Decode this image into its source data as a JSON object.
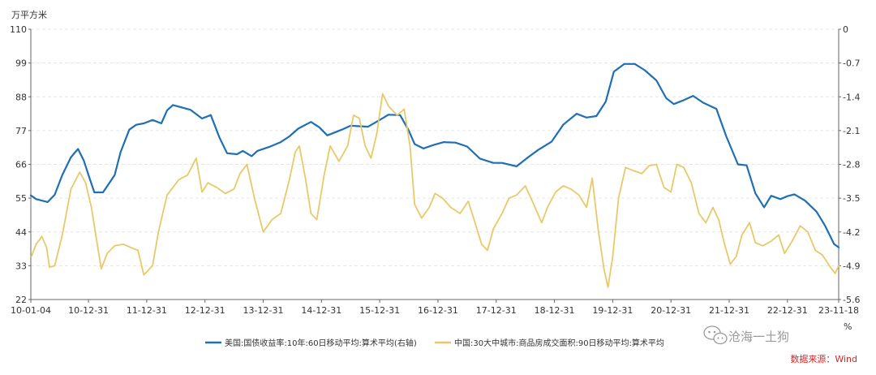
{
  "chart_data": {
    "type": "line",
    "left_unit": "万平方米",
    "right_unit": "%",
    "left_ylim": [
      22,
      110
    ],
    "left_ticks": [
      "110",
      "99",
      "88",
      "77",
      "66",
      "55",
      "44",
      "33",
      "22"
    ],
    "right_ylim": [
      -5.6,
      0
    ],
    "right_ticks": [
      "0",
      "-0.7",
      "-1.4",
      "-2.1",
      "-2.8",
      "-3.5",
      "-4.2",
      "-4.9",
      "-5.6"
    ],
    "x_ticks": [
      "10-01-04",
      "10-12-31",
      "11-12-31",
      "12-12-31",
      "13-12-31",
      "14-12-31",
      "15-12-31",
      "16-12-31",
      "17-12-31",
      "18-12-31",
      "19-12-31",
      "20-12-31",
      "21-12-31",
      "22-12-31",
      "23-11-18"
    ],
    "x_tick_dates": [
      2010.01,
      2011.0,
      2012.0,
      2013.0,
      2014.0,
      2015.0,
      2016.0,
      2017.0,
      2018.0,
      2019.0,
      2020.0,
      2021.0,
      2022.0,
      2023.0,
      2023.88
    ],
    "series": [
      {
        "name": "美国:国债收益率:10年:60日移动平均:算术平均(右轴)",
        "axis": "right",
        "color": "#1f6fb4",
        "points": [
          [
            2010.01,
            -3.44
          ],
          [
            2010.1,
            -3.52
          ],
          [
            2010.3,
            -3.58
          ],
          [
            2010.42,
            -3.43
          ],
          [
            2010.55,
            -3.02
          ],
          [
            2010.7,
            -2.65
          ],
          [
            2010.82,
            -2.48
          ],
          [
            2010.92,
            -2.72
          ],
          [
            2011.0,
            -3.02
          ],
          [
            2011.1,
            -3.38
          ],
          [
            2011.25,
            -3.38
          ],
          [
            2011.45,
            -3.02
          ],
          [
            2011.55,
            -2.55
          ],
          [
            2011.7,
            -2.08
          ],
          [
            2011.82,
            -1.98
          ],
          [
            2011.95,
            -1.95
          ],
          [
            2012.1,
            -1.88
          ],
          [
            2012.25,
            -1.95
          ],
          [
            2012.35,
            -1.68
          ],
          [
            2012.45,
            -1.57
          ],
          [
            2012.6,
            -1.62
          ],
          [
            2012.75,
            -1.67
          ],
          [
            2012.95,
            -1.85
          ],
          [
            2013.1,
            -1.78
          ],
          [
            2013.25,
            -2.25
          ],
          [
            2013.38,
            -2.57
          ],
          [
            2013.55,
            -2.59
          ],
          [
            2013.65,
            -2.52
          ],
          [
            2013.8,
            -2.63
          ],
          [
            2013.9,
            -2.52
          ],
          [
            2014.1,
            -2.44
          ],
          [
            2014.3,
            -2.34
          ],
          [
            2014.45,
            -2.22
          ],
          [
            2014.6,
            -2.06
          ],
          [
            2014.82,
            -1.92
          ],
          [
            2014.96,
            -2.03
          ],
          [
            2015.1,
            -2.2
          ],
          [
            2015.35,
            -2.08
          ],
          [
            2015.5,
            -2.0
          ],
          [
            2015.8,
            -2.02
          ],
          [
            2016.0,
            -1.88
          ],
          [
            2016.15,
            -1.77
          ],
          [
            2016.35,
            -1.78
          ],
          [
            2016.5,
            -2.1
          ],
          [
            2016.6,
            -2.38
          ],
          [
            2016.75,
            -2.47
          ],
          [
            2016.92,
            -2.4
          ],
          [
            2017.1,
            -2.34
          ],
          [
            2017.3,
            -2.35
          ],
          [
            2017.5,
            -2.43
          ],
          [
            2017.72,
            -2.68
          ],
          [
            2017.95,
            -2.77
          ],
          [
            2018.1,
            -2.77
          ],
          [
            2018.35,
            -2.84
          ],
          [
            2018.55,
            -2.65
          ],
          [
            2018.72,
            -2.5
          ],
          [
            2018.95,
            -2.33
          ],
          [
            2019.15,
            -1.98
          ],
          [
            2019.38,
            -1.75
          ],
          [
            2019.55,
            -1.83
          ],
          [
            2019.72,
            -1.8
          ],
          [
            2019.88,
            -1.5
          ],
          [
            2020.02,
            -0.88
          ],
          [
            2020.2,
            -0.72
          ],
          [
            2020.38,
            -0.72
          ],
          [
            2020.55,
            -0.85
          ],
          [
            2020.75,
            -1.06
          ],
          [
            2020.92,
            -1.43
          ],
          [
            2021.05,
            -1.55
          ],
          [
            2021.22,
            -1.47
          ],
          [
            2021.38,
            -1.38
          ],
          [
            2021.55,
            -1.52
          ],
          [
            2021.78,
            -1.65
          ],
          [
            2021.95,
            -2.22
          ],
          [
            2022.15,
            -2.8
          ],
          [
            2022.3,
            -2.82
          ],
          [
            2022.45,
            -3.4
          ],
          [
            2022.6,
            -3.69
          ],
          [
            2022.72,
            -3.45
          ],
          [
            2022.88,
            -3.52
          ],
          [
            2023.0,
            -3.46
          ],
          [
            2023.12,
            -3.42
          ],
          [
            2023.3,
            -3.55
          ],
          [
            2023.5,
            -3.78
          ],
          [
            2023.65,
            -4.08
          ],
          [
            2023.8,
            -4.45
          ],
          [
            2023.88,
            -4.52
          ]
        ]
      },
      {
        "name": "中国:30大中城市:商品房成交面积:90日移动平均:算术平均",
        "axis": "left",
        "color": "#e8c96a",
        "points": [
          [
            2010.02,
            36.0
          ],
          [
            2010.1,
            40.0
          ],
          [
            2010.2,
            42.5
          ],
          [
            2010.28,
            39.0
          ],
          [
            2010.33,
            32.5
          ],
          [
            2010.42,
            33.0
          ],
          [
            2010.55,
            43.0
          ],
          [
            2010.7,
            58.0
          ],
          [
            2010.85,
            63.5
          ],
          [
            2010.95,
            60.0
          ],
          [
            2011.05,
            52.0
          ],
          [
            2011.15,
            40.0
          ],
          [
            2011.22,
            32.0
          ],
          [
            2011.32,
            37.0
          ],
          [
            2011.45,
            39.5
          ],
          [
            2011.6,
            40.0
          ],
          [
            2011.72,
            39.0
          ],
          [
            2011.85,
            38.0
          ],
          [
            2011.95,
            30.0
          ],
          [
            2012.1,
            33.0
          ],
          [
            2012.2,
            44.0
          ],
          [
            2012.35,
            56.0
          ],
          [
            2012.55,
            61.0
          ],
          [
            2012.7,
            62.5
          ],
          [
            2012.85,
            68.0
          ],
          [
            2012.95,
            57.0
          ],
          [
            2013.05,
            60.0
          ],
          [
            2013.2,
            58.5
          ],
          [
            2013.35,
            56.5
          ],
          [
            2013.5,
            58.0
          ],
          [
            2013.6,
            63.0
          ],
          [
            2013.72,
            66.0
          ],
          [
            2013.85,
            55.0
          ],
          [
            2014.0,
            44.0
          ],
          [
            2014.15,
            48.0
          ],
          [
            2014.3,
            50.0
          ],
          [
            2014.45,
            61.0
          ],
          [
            2014.55,
            70.0
          ],
          [
            2014.62,
            72.0
          ],
          [
            2014.72,
            62.0
          ],
          [
            2014.82,
            50.0
          ],
          [
            2014.92,
            48.0
          ],
          [
            2015.05,
            63.0
          ],
          [
            2015.15,
            72.0
          ],
          [
            2015.3,
            67.0
          ],
          [
            2015.45,
            72.0
          ],
          [
            2015.55,
            82.0
          ],
          [
            2015.65,
            81.0
          ],
          [
            2015.75,
            72.0
          ],
          [
            2015.85,
            68.0
          ],
          [
            2015.95,
            76.0
          ],
          [
            2016.05,
            89.0
          ],
          [
            2016.15,
            85.0
          ],
          [
            2016.3,
            82.0
          ],
          [
            2016.42,
            84.0
          ],
          [
            2016.52,
            72.0
          ],
          [
            2016.6,
            53.0
          ],
          [
            2016.72,
            48.5
          ],
          [
            2016.85,
            52.0
          ],
          [
            2016.95,
            56.5
          ],
          [
            2017.08,
            55.0
          ],
          [
            2017.22,
            52.0
          ],
          [
            2017.38,
            50.0
          ],
          [
            2017.52,
            54.0
          ],
          [
            2017.62,
            48.0
          ],
          [
            2017.75,
            40.0
          ],
          [
            2017.85,
            38.0
          ],
          [
            2017.95,
            45.0
          ],
          [
            2018.1,
            50.0
          ],
          [
            2018.22,
            55.0
          ],
          [
            2018.35,
            56.0
          ],
          [
            2018.5,
            59.0
          ],
          [
            2018.62,
            54.0
          ],
          [
            2018.78,
            47.0
          ],
          [
            2018.88,
            52.0
          ],
          [
            2019.02,
            57.0
          ],
          [
            2019.15,
            59.0
          ],
          [
            2019.28,
            58.0
          ],
          [
            2019.42,
            56.0
          ],
          [
            2019.55,
            52.0
          ],
          [
            2019.65,
            61.5
          ],
          [
            2019.75,
            45.0
          ],
          [
            2019.85,
            32.0
          ],
          [
            2019.92,
            26.0
          ],
          [
            2020.0,
            36.0
          ],
          [
            2020.1,
            55.0
          ],
          [
            2020.22,
            65.0
          ],
          [
            2020.35,
            64.0
          ],
          [
            2020.5,
            63.0
          ],
          [
            2020.62,
            65.5
          ],
          [
            2020.75,
            66.0
          ],
          [
            2020.88,
            58.5
          ],
          [
            2021.0,
            57.0
          ],
          [
            2021.1,
            66.0
          ],
          [
            2021.22,
            65.0
          ],
          [
            2021.35,
            60.0
          ],
          [
            2021.48,
            50.0
          ],
          [
            2021.6,
            47.0
          ],
          [
            2021.72,
            52.0
          ],
          [
            2021.82,
            48.0
          ],
          [
            2021.92,
            40.0
          ],
          [
            2022.02,
            33.5
          ],
          [
            2022.12,
            36.0
          ],
          [
            2022.22,
            43.0
          ],
          [
            2022.35,
            47.0
          ],
          [
            2022.45,
            40.5
          ],
          [
            2022.58,
            39.5
          ],
          [
            2022.72,
            41.0
          ],
          [
            2022.85,
            43.0
          ],
          [
            2022.95,
            37.0
          ],
          [
            2023.08,
            41.0
          ],
          [
            2023.22,
            46.0
          ],
          [
            2023.35,
            44.0
          ],
          [
            2023.48,
            38.0
          ],
          [
            2023.6,
            36.5
          ],
          [
            2023.72,
            33.0
          ],
          [
            2023.82,
            30.5
          ],
          [
            2023.88,
            33.0
          ]
        ]
      }
    ]
  },
  "watermark": "沧海一土狗",
  "source": "数据来源：Wind"
}
